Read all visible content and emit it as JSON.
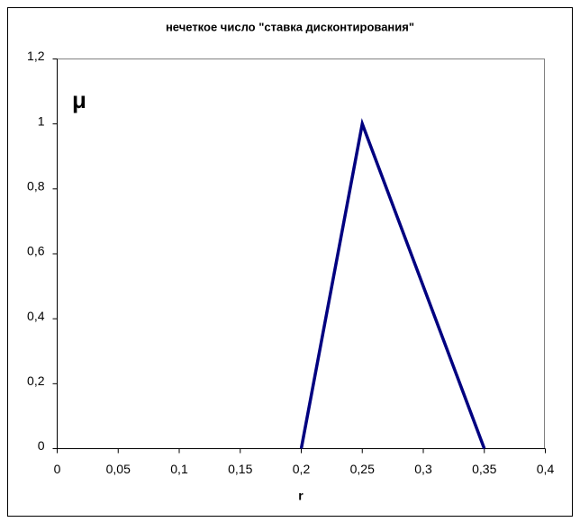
{
  "chart_data": {
    "type": "line",
    "title": "нечеткое число \"ставка дисконтирования\"",
    "x_label": "r",
    "annotation": "μ",
    "x": [
      0.2,
      0.25,
      0.35
    ],
    "series": [
      {
        "color": "#000080",
        "values": [
          0,
          1,
          0
        ]
      }
    ],
    "xlim": [
      0,
      0.4
    ],
    "xticks": [
      0,
      {
        "value": 0.05,
        "label": "0,05"
      },
      {
        "value": 0.1,
        "label": "0,1"
      },
      {
        "value": 0.15,
        "label": "0,15"
      },
      {
        "value": 0.2,
        "label": "0,2"
      },
      {
        "value": 0.25,
        "label": "0,25"
      },
      {
        "value": 0.3,
        "label": "0,3"
      },
      {
        "value": 0.35,
        "label": "0,35"
      },
      {
        "value": 0.4,
        "label": "0,4"
      }
    ],
    "ylim": [
      0,
      1.2
    ],
    "yticks": [
      0,
      {
        "value": 0.2,
        "label": "0,2"
      },
      {
        "value": 0.4,
        "label": "0,4"
      },
      {
        "value": 0.6,
        "label": "0,6"
      },
      {
        "value": 0.8,
        "label": "0,8"
      },
      1,
      {
        "value": 1.2,
        "label": "1,2"
      }
    ],
    "grid": false
  }
}
